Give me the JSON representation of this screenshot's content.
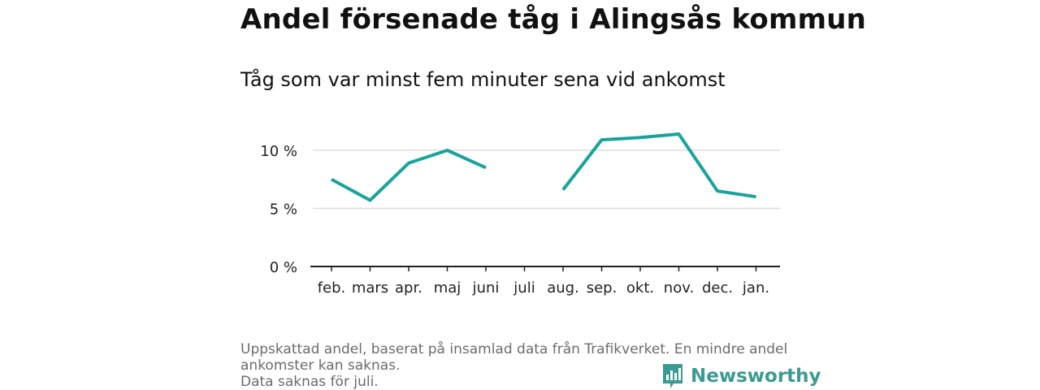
{
  "title": "Andel försenade tåg i Alingsås kommun",
  "subtitle": "Tåg som var minst fem minuter sena vid ankomst",
  "footer": {
    "note1": "Uppskattad andel, baserat på insamlad data från Trafikverket. En mindre andel ankomster kan saknas.",
    "note2": "Data saknas för juli."
  },
  "brand": {
    "name": "Newsworthy",
    "icon": "bar-chart-logo-icon",
    "color": "#3d9a93"
  },
  "chart_data": {
    "type": "line",
    "categories": [
      "feb.",
      "mars",
      "apr.",
      "maj",
      "juni",
      "juli",
      "aug.",
      "sep.",
      "okt.",
      "nov.",
      "dec.",
      "jan."
    ],
    "series": [
      {
        "values": [
          7.5,
          5.7,
          8.9,
          10.0,
          8.5,
          null,
          6.6,
          10.9,
          11.1,
          11.4,
          6.5,
          6.0
        ],
        "color": "#1aa39a"
      }
    ],
    "yticks": [
      {
        "value": 0,
        "label": "0 %"
      },
      {
        "value": 5,
        "label": "5 %"
      },
      {
        "value": 10,
        "label": "10 %"
      }
    ],
    "ylim": [
      0,
      12.5
    ],
    "grid": true,
    "xlabel": "",
    "ylabel": ""
  }
}
